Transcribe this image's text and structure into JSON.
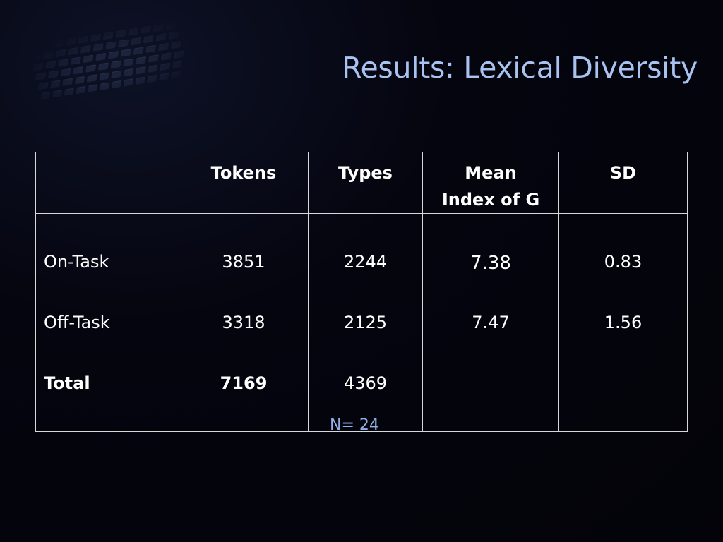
{
  "slide": {
    "title": "Results: Lexical Diversity",
    "note": "N= 24"
  },
  "table": {
    "headers": [
      "",
      "Tokens",
      "Types",
      "Mean Index of G",
      "SD"
    ],
    "header_lines": {
      "mean_line1": "Mean",
      "mean_line2": "Index of G"
    },
    "rows": [
      {
        "label": "On-Task",
        "tokens": "3851",
        "types": "2244",
        "mean_index_g": "7.38",
        "sd": "0.83"
      },
      {
        "label": "Off-Task",
        "tokens": "3318",
        "types": "2125",
        "mean_index_g": "7.47",
        "sd": "1.56"
      },
      {
        "label": "Total",
        "tokens": "7169",
        "types": "4369"
      }
    ]
  },
  "colors": {
    "background": "#05050f",
    "title": "#a9c2ef",
    "note": "#8fb0e8",
    "grid": "#d8d8d8",
    "text": "#ffffff"
  },
  "icons": [
    "keyboard-image"
  ]
}
